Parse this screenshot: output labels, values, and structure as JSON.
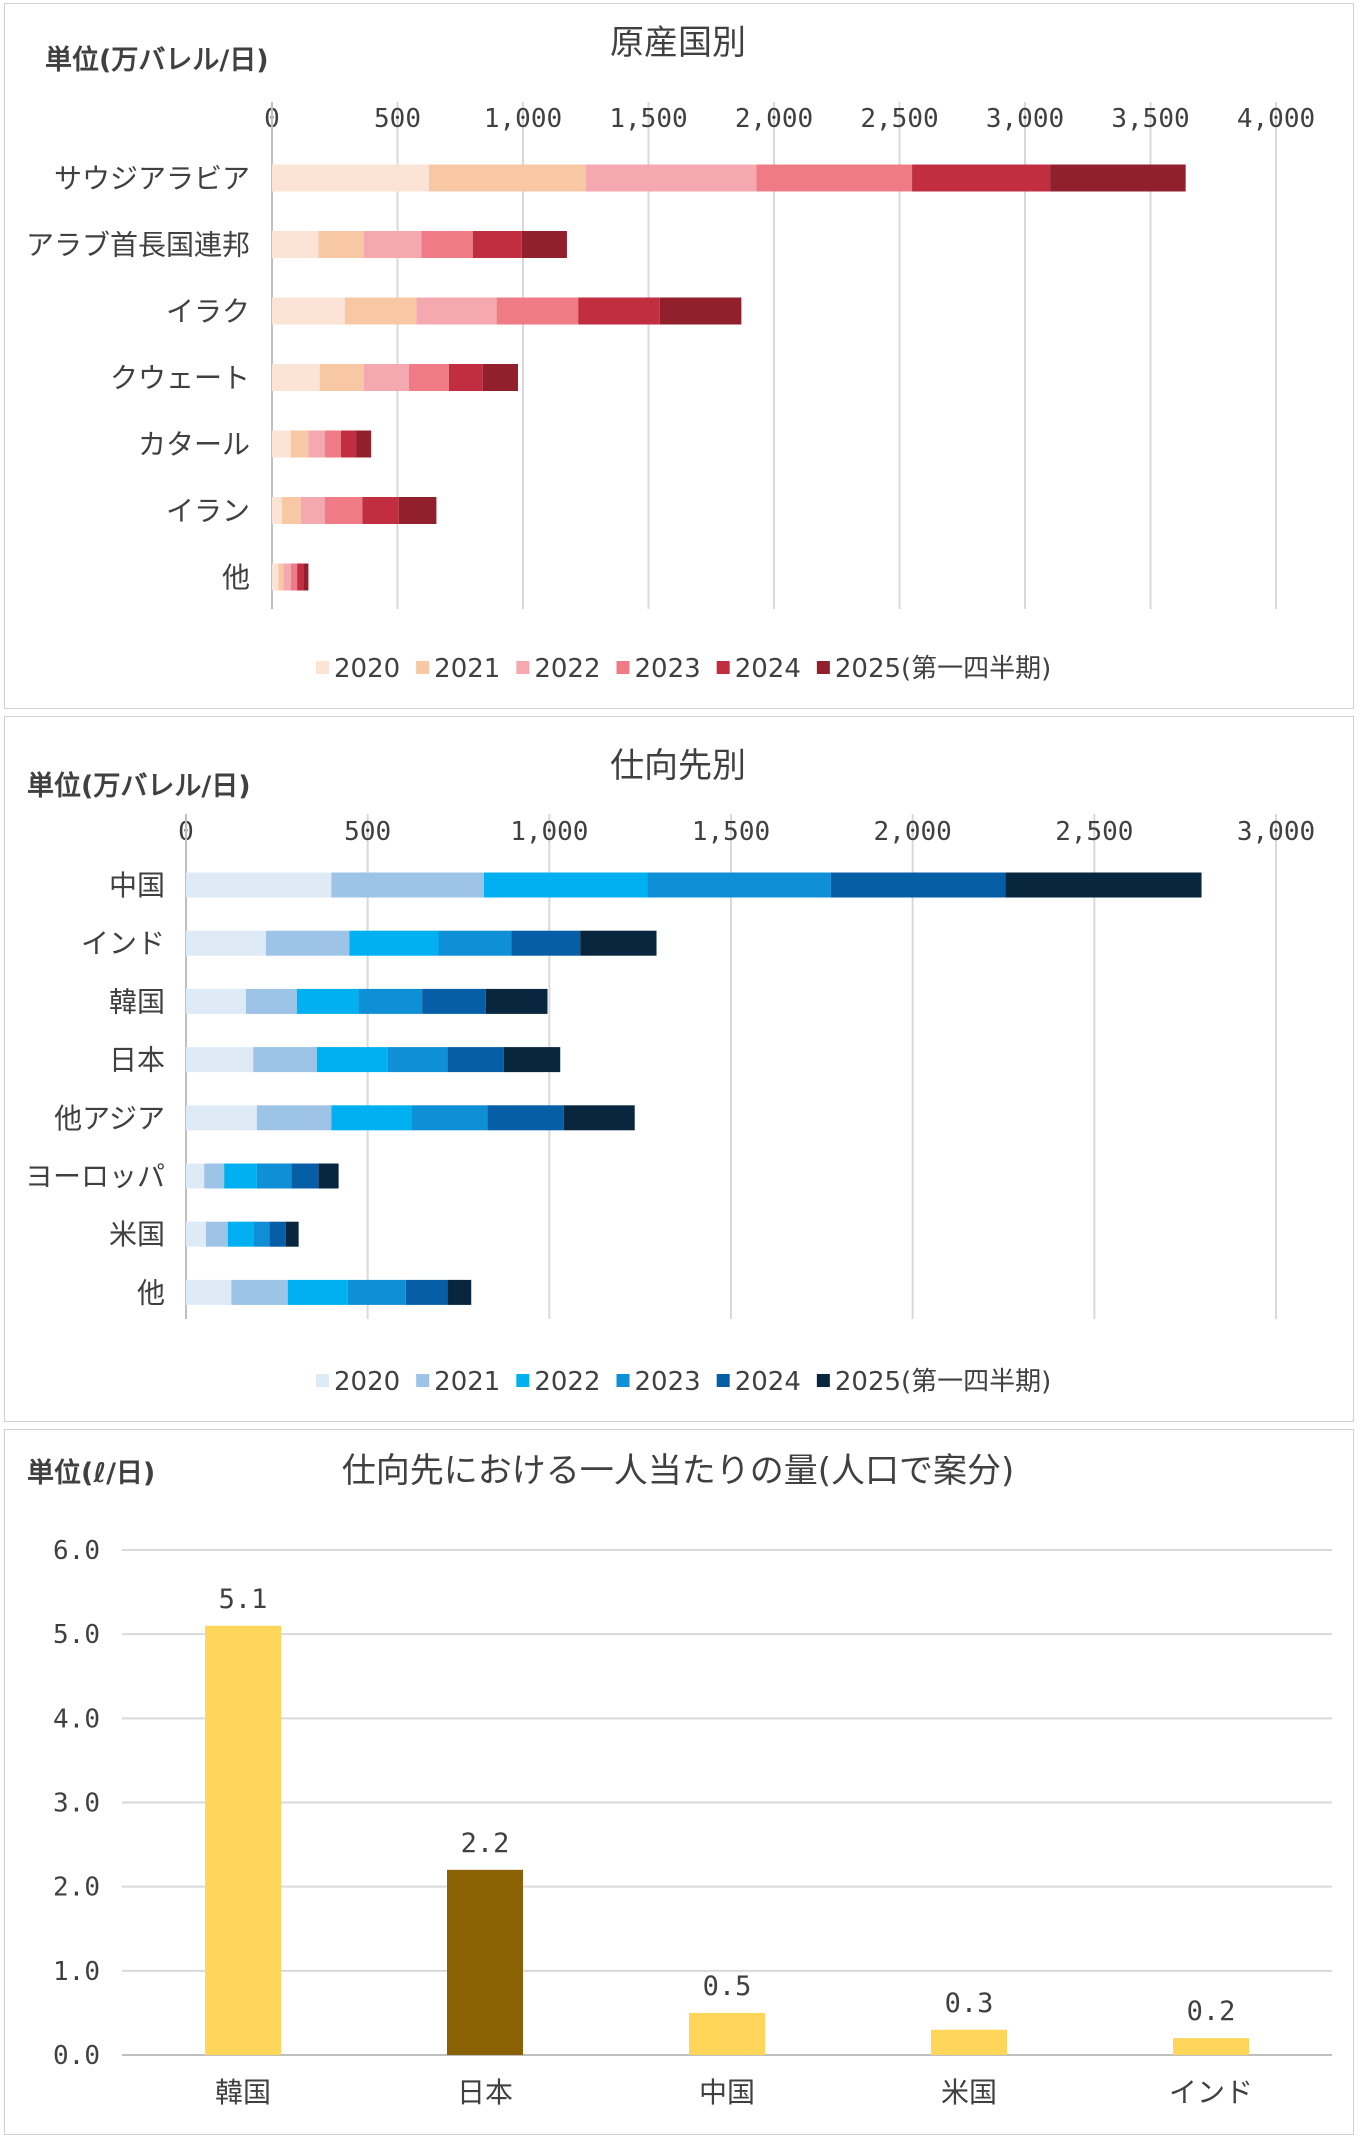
{
  "chart_data": [
    {
      "type": "bar",
      "orientation": "horizontal",
      "stacked": true,
      "title": "原産国別",
      "unit_label": "単位(万バレル/日)",
      "xlim": [
        0,
        4000
      ],
      "ticks": [
        "0",
        "500",
        "1,000",
        "1,500",
        "2,000",
        "2,500",
        "3,000",
        "3,500",
        "4,000"
      ],
      "tick_values": [
        0,
        500,
        1000,
        1500,
        2000,
        2500,
        3000,
        3500,
        4000
      ],
      "legend_position": "bottom",
      "categories": [
        "サウジアラビア",
        "アラブ首長国連邦",
        "イラク",
        "クウェート",
        "カタール",
        "イラン",
        "他"
      ],
      "series": [
        {
          "name": "2020",
          "color": "#fbe3d6",
          "values": [
            625,
            185,
            290,
            190,
            75,
            40,
            25
          ]
        },
        {
          "name": "2021",
          "color": "#f8c7a4",
          "values": [
            625,
            180,
            285,
            175,
            70,
            75,
            20
          ]
        },
        {
          "name": "2022",
          "color": "#f5a8b0",
          "values": [
            680,
            230,
            320,
            180,
            65,
            95,
            30
          ]
        },
        {
          "name": "2023",
          "color": "#ee7b86",
          "values": [
            620,
            205,
            325,
            160,
            65,
            150,
            25
          ]
        },
        {
          "name": "2024",
          "color": "#c12e40",
          "values": [
            550,
            195,
            325,
            135,
            60,
            145,
            25
          ]
        },
        {
          "name": "2025(第一四半期)",
          "color": "#921f2c",
          "values": [
            540,
            180,
            325,
            140,
            60,
            150,
            20
          ]
        }
      ]
    },
    {
      "type": "bar",
      "orientation": "horizontal",
      "stacked": true,
      "title": "仕向先別",
      "unit_label": "単位(万バレル/日)",
      "xlim": [
        0,
        3000
      ],
      "ticks": [
        "0",
        "500",
        "1,000",
        "1,500",
        "2,000",
        "2,500",
        "3,000"
      ],
      "tick_values": [
        0,
        500,
        1000,
        1500,
        2000,
        2500,
        3000
      ],
      "legend_position": "bottom",
      "categories": [
        "中国",
        "インド",
        "韓国",
        "日本",
        "他アジア",
        "ヨーロッパ",
        "米国",
        "他"
      ],
      "series": [
        {
          "name": "2020",
          "color": "#deebf7",
          "values": [
            400,
            220,
            165,
            185,
            195,
            50,
            55,
            125
          ]
        },
        {
          "name": "2021",
          "color": "#9dc3e6",
          "values": [
            420,
            230,
            140,
            175,
            205,
            55,
            60,
            155
          ]
        },
        {
          "name": "2022",
          "color": "#00b0f0",
          "values": [
            450,
            245,
            170,
            195,
            220,
            90,
            70,
            165
          ]
        },
        {
          "name": "2023",
          "color": "#0f8fd6",
          "values": [
            505,
            200,
            175,
            165,
            210,
            95,
            45,
            160
          ]
        },
        {
          "name": "2024",
          "color": "#065ea6",
          "values": [
            480,
            190,
            175,
            155,
            210,
            75,
            45,
            115
          ]
        },
        {
          "name": "2025(第一四半期)",
          "color": "#08263d",
          "values": [
            540,
            210,
            170,
            155,
            195,
            55,
            35,
            65
          ]
        }
      ]
    },
    {
      "type": "bar",
      "orientation": "vertical",
      "title": "仕向先における一人当たりの量(人口で案分)",
      "unit_label": "単位(ℓ/日)",
      "ylim": [
        0,
        6
      ],
      "ticks": [
        "0.0",
        "1.0",
        "2.0",
        "3.0",
        "4.0",
        "5.0",
        "6.0"
      ],
      "tick_values": [
        0,
        1,
        2,
        3,
        4,
        5,
        6
      ],
      "categories": [
        "韓国",
        "日本",
        "中国",
        "米国",
        "インド"
      ],
      "values": [
        5.1,
        2.2,
        0.5,
        0.3,
        0.2
      ],
      "value_labels": [
        "5.1",
        "2.2",
        "0.5",
        "0.3",
        "0.2"
      ],
      "colors": [
        "#ffd55a",
        "#8a6204",
        "#ffd55a",
        "#ffd55a",
        "#ffd55a"
      ]
    }
  ]
}
